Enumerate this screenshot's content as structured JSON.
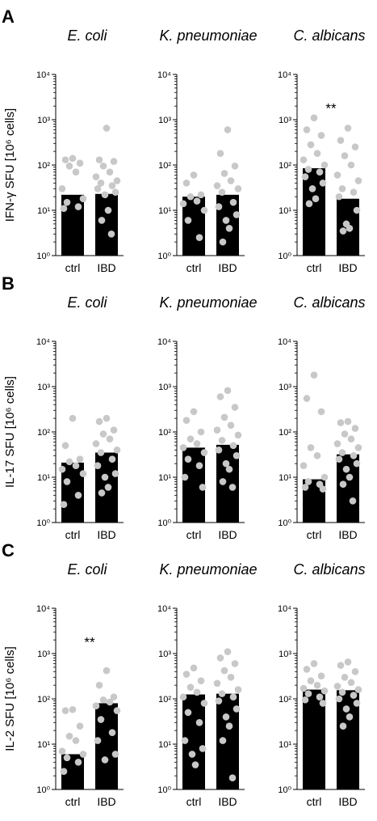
{
  "figure": {
    "colors": {
      "bar": "#000000",
      "dot": "#c8c8c8",
      "axis": "#000000"
    },
    "rows": [
      {
        "letter": "A",
        "ylabel": "IFN-γ SFU [10⁶ cells]",
        "panels": [
          {
            "title": "E. coli"
          },
          {
            "title": "K. pneumoniae"
          },
          {
            "title": "C. albicans"
          }
        ]
      },
      {
        "letter": "B",
        "ylabel": "IL-17 SFU [10⁶ cells]",
        "panels": [
          {
            "title": "E. coli"
          },
          {
            "title": "K. pneumoniae"
          },
          {
            "title": "C. albicans"
          }
        ]
      },
      {
        "letter": "C",
        "ylabel": "IL-2 SFU [10⁶ cells]",
        "panels": [
          {
            "title": "E. coli"
          },
          {
            "title": "K. pneumoniae"
          },
          {
            "title": "C. albicans"
          }
        ]
      }
    ]
  },
  "chart_data": [
    {
      "type": "bar",
      "row": "A",
      "title": "E. coli",
      "ylabel": "IFN-γ SFU [10⁶ cells]",
      "yscale": "log",
      "ylim": [
        1,
        10000
      ],
      "yticks": [
        "10⁰",
        "10¹",
        "10²",
        "10³",
        "10⁴"
      ],
      "categories": [
        "ctrl",
        "IBD"
      ],
      "values": [
        22,
        23
      ],
      "points": [
        [
          140,
          130,
          110,
          95,
          70,
          30,
          18,
          15,
          12,
          11
        ],
        [
          650,
          130,
          120,
          95,
          70,
          55,
          45,
          40,
          35,
          30,
          25,
          22,
          10,
          6,
          3
        ]
      ],
      "annotation": ""
    },
    {
      "type": "bar",
      "row": "A",
      "title": "K. pneumoniae",
      "ylabel": "IFN-γ SFU [10⁶ cells]",
      "yscale": "log",
      "ylim": [
        1,
        10000
      ],
      "yticks": [
        "10⁰",
        "10¹",
        "10²",
        "10³",
        "10⁴"
      ],
      "categories": [
        "ctrl",
        "IBD"
      ],
      "values": [
        20,
        22
      ],
      "points": [
        [
          60,
          40,
          22,
          20,
          16,
          14,
          10,
          6,
          2.5
        ],
        [
          600,
          180,
          95,
          65,
          45,
          35,
          30,
          25,
          15,
          12,
          8,
          6,
          4,
          2
        ]
      ],
      "annotation": ""
    },
    {
      "type": "bar",
      "row": "A",
      "title": "C. albicans",
      "ylabel": "IFN-γ SFU [10⁶ cells]",
      "yscale": "log",
      "ylim": [
        1,
        10000
      ],
      "yticks": [
        "10⁰",
        "10¹",
        "10²",
        "10³",
        "10⁴"
      ],
      "categories": [
        "ctrl",
        "IBD"
      ],
      "values": [
        85,
        18
      ],
      "points": [
        [
          1100,
          600,
          450,
          280,
          180,
          130,
          100,
          80,
          70,
          55,
          40,
          30,
          18,
          14
        ],
        [
          650,
          350,
          250,
          160,
          100,
          60,
          45,
          30,
          25,
          20,
          10,
          5,
          4,
          3.5
        ]
      ],
      "annotation": "**"
    },
    {
      "type": "bar",
      "row": "B",
      "title": "E. coli",
      "ylabel": "IL-17 SFU [10⁶ cells]",
      "yscale": "log",
      "ylim": [
        1,
        10000
      ],
      "yticks": [
        "10⁰",
        "10¹",
        "10²",
        "10³",
        "10⁴"
      ],
      "categories": [
        "ctrl",
        "IBD"
      ],
      "values": [
        21,
        35
      ],
      "points": [
        [
          200,
          50,
          25,
          22,
          18,
          15,
          12,
          8,
          4,
          2.5
        ],
        [
          200,
          170,
          110,
          90,
          70,
          55,
          40,
          35,
          25,
          18,
          12,
          10,
          6,
          4.5
        ]
      ],
      "annotation": ""
    },
    {
      "type": "bar",
      "row": "B",
      "title": "K. pneumoniae",
      "ylabel": "IL-17 SFU [10⁶ cells]",
      "yscale": "log",
      "ylim": [
        1,
        10000
      ],
      "yticks": [
        "10⁰",
        "10¹",
        "10²",
        "10³",
        "10⁴"
      ],
      "categories": [
        "ctrl",
        "IBD"
      ],
      "values": [
        45,
        52
      ],
      "points": [
        [
          280,
          180,
          100,
          70,
          55,
          45,
          35,
          25,
          18,
          10,
          6
        ],
        [
          820,
          600,
          350,
          210,
          140,
          110,
          85,
          65,
          50,
          40,
          30,
          20,
          15,
          8,
          6
        ]
      ],
      "annotation": ""
    },
    {
      "type": "bar",
      "row": "B",
      "title": "C. albicans",
      "ylabel": "IL-17 SFU [10⁶ cells]",
      "yscale": "log",
      "ylim": [
        1,
        10000
      ],
      "yticks": [
        "10⁰",
        "10¹",
        "10²",
        "10³",
        "10⁴"
      ],
      "categories": [
        "ctrl",
        "IBD"
      ],
      "values": [
        9,
        32
      ],
      "points": [
        [
          1800,
          550,
          280,
          45,
          30,
          18,
          10,
          8,
          7,
          6,
          5.5
        ],
        [
          170,
          160,
          120,
          90,
          70,
          55,
          45,
          35,
          30,
          25,
          20,
          15,
          10,
          7,
          3
        ]
      ],
      "annotation": ""
    },
    {
      "type": "bar",
      "row": "C",
      "title": "E. coli",
      "ylabel": "IL-2 SFU [10⁶ cells]",
      "yscale": "log",
      "ylim": [
        1,
        10000
      ],
      "yticks": [
        "10⁰",
        "10¹",
        "10²",
        "10³",
        "10⁴"
      ],
      "categories": [
        "ctrl",
        "IBD"
      ],
      "values": [
        6,
        80
      ],
      "points": [
        [
          58,
          55,
          25,
          15,
          12,
          7,
          6,
          5,
          4,
          2.5
        ],
        [
          420,
          200,
          110,
          95,
          85,
          70,
          55,
          35,
          18,
          12,
          6,
          4.5
        ]
      ],
      "annotation": "**"
    },
    {
      "type": "bar",
      "row": "C",
      "title": "K. pneumoniae",
      "ylabel": "IL-2 SFU [10⁶ cells]",
      "yscale": "log",
      "ylim": [
        1,
        10000
      ],
      "yticks": [
        "10⁰",
        "10¹",
        "10²",
        "10³",
        "10⁴"
      ],
      "categories": [
        "ctrl",
        "IBD"
      ],
      "values": [
        125,
        130
      ],
      "points": [
        [
          480,
          350,
          250,
          180,
          140,
          110,
          80,
          50,
          30,
          12,
          8,
          6,
          3.5
        ],
        [
          1100,
          800,
          600,
          420,
          300,
          220,
          160,
          130,
          110,
          90,
          60,
          40,
          25,
          12,
          1.8
        ]
      ],
      "annotation": ""
    },
    {
      "type": "bar",
      "row": "C",
      "title": "C. albicans",
      "ylabel": "IL-2 SFU [10⁶ cells]",
      "yscale": "log",
      "ylim": [
        1,
        10000
      ],
      "yticks": [
        "10⁰",
        "10¹",
        "10²",
        "10³",
        "10⁴"
      ],
      "categories": [
        "ctrl",
        "IBD"
      ],
      "values": [
        160,
        155
      ],
      "points": [
        [
          600,
          450,
          320,
          250,
          200,
          170,
          150,
          130,
          110,
          95,
          80
        ],
        [
          650,
          550,
          400,
          300,
          230,
          190,
          160,
          140,
          120,
          100,
          80,
          60,
          40,
          25
        ]
      ],
      "annotation": ""
    }
  ]
}
